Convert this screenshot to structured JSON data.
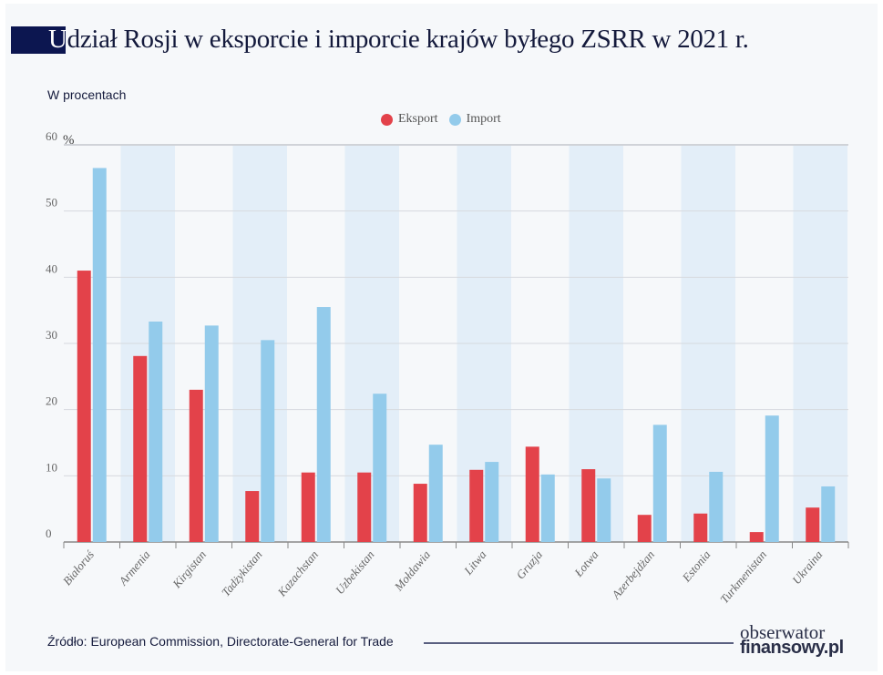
{
  "title_first_letter": "U",
  "title_rest": "dział Rosji w eksporcie i imporcie krajów byłego ZSRR w 2021 r.",
  "subtitle": "W procentach",
  "source": "Źródło: European Commission, Directorate-General for Trade",
  "logo": {
    "line1": "obserwator",
    "line2": "finansowy.pl"
  },
  "colors": {
    "export": "#e3424a",
    "import": "#93cbeb",
    "band": "#e3eef8",
    "title_box": "#0c1650"
  },
  "chart_data": {
    "type": "bar",
    "title": "Udział Rosji w eksporcie i imporcie krajów byłego ZSRR w 2021 r.",
    "ylabel": "W procentach",
    "y_unit": "%",
    "ylim": [
      0,
      60
    ],
    "yticks": [
      "0",
      "10",
      "20",
      "30",
      "40",
      "50",
      "60"
    ],
    "grid": true,
    "legend_position": "top-center",
    "categories": [
      "Białoruś",
      "Armenia",
      "Kirgistan",
      "Tadżykistan",
      "Kazachstan",
      "Uzbekistan",
      "Mołdawia",
      "Litwa",
      "Gruzja",
      "Łotwa",
      "Azerbejdżan",
      "Estonia",
      "Turkmenistan",
      "Ukraina"
    ],
    "series": [
      {
        "name": "Eksport",
        "values": [
          41.0,
          28.1,
          23.0,
          7.7,
          10.5,
          10.5,
          8.8,
          10.9,
          14.4,
          11.0,
          4.1,
          4.3,
          1.5,
          5.2
        ]
      },
      {
        "name": "Import",
        "values": [
          56.5,
          33.3,
          32.7,
          30.5,
          35.5,
          22.4,
          14.7,
          12.1,
          10.2,
          9.6,
          17.7,
          10.6,
          19.1,
          8.4
        ]
      }
    ]
  }
}
